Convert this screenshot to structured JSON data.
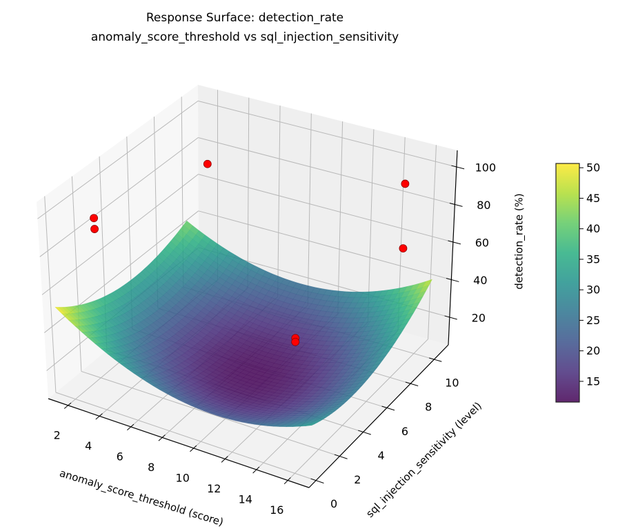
{
  "chart_data": {
    "type": "surface",
    "title": [
      "Response Surface: detection_rate",
      "anomaly_score_threshold vs sql_injection_sensitivity"
    ],
    "xlabel": "anomaly_score_threshold (score)",
    "ylabel": "sql_injection_sensitivity (level)",
    "zlabel": "detection_rate (%)",
    "xlim": [
      0.74,
      17.35
    ],
    "ylim": [
      -0.59,
      11.2
    ],
    "zlim": [
      5.3,
      108.8
    ],
    "xticks": [
      "2",
      "4",
      "6",
      "8",
      "10",
      "12",
      "14",
      "16"
    ],
    "yticks": [
      "0",
      "2",
      "4",
      "6",
      "8",
      "10"
    ],
    "zticks": [
      "20",
      "40",
      "60",
      "80",
      "100"
    ],
    "grid": true,
    "colormap": "viridis",
    "colormap_stops": [
      "#440154",
      "#472d7b",
      "#3b528b",
      "#2c728e",
      "#21918c",
      "#28ae80",
      "#5ec962",
      "#addc30",
      "#fde725"
    ],
    "surface": {
      "x_range": [
        1,
        17
      ],
      "y_range": [
        0,
        10
      ],
      "center": [
        9,
        5
      ],
      "coefficients": {
        "c0": 12,
        "xx": 0.3,
        "yy": 0.482,
        "xy": 0.144,
        "x": -0.406,
        "y": 0.25
      },
      "alpha": 0.85
    },
    "colorbar": {
      "range": [
        11.6,
        50.7
      ],
      "ticks": [
        "15",
        "20",
        "25",
        "30",
        "35",
        "40",
        "45",
        "50"
      ],
      "location": "right"
    },
    "points": [
      {
        "x": 1.2,
        "y": 2.9,
        "z": 83
      },
      {
        "x": 1.3,
        "y": 2.8,
        "z": 78
      },
      {
        "x": 3.4,
        "y": 8.8,
        "z": 85
      },
      {
        "x": 14.5,
        "y": 10.7,
        "z": 88
      },
      {
        "x": 15.8,
        "y": 9.0,
        "z": 67
      },
      {
        "x": 12.2,
        "y": 4.9,
        "z": 36
      },
      {
        "x": 12.2,
        "y": 4.9,
        "z": 34
      }
    ],
    "point_color": "#ff0000"
  }
}
